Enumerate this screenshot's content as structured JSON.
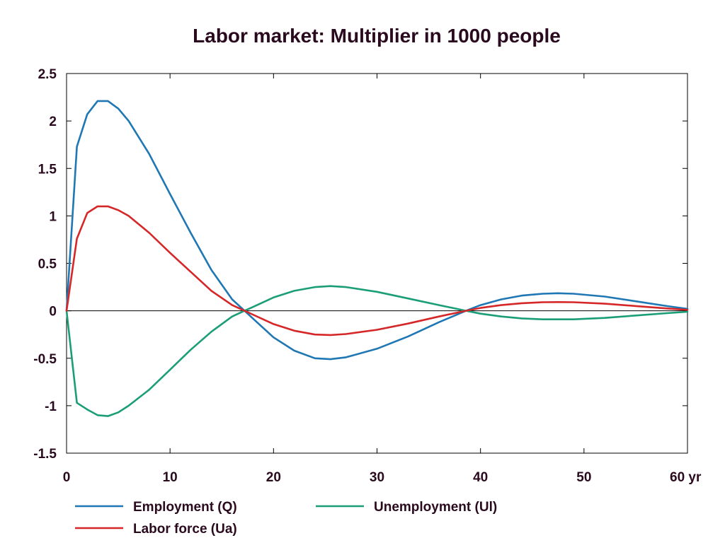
{
  "chart_data": {
    "type": "line",
    "title": "Labor market: Multiplier in 1000 people",
    "xlabel": "",
    "ylabel": "",
    "xlim": [
      0,
      60
    ],
    "ylim": [
      -1.5,
      2.5
    ],
    "x_ticks": [
      0,
      10,
      20,
      30,
      40,
      50,
      60
    ],
    "x_tick_labels": [
      "0",
      "10",
      "20",
      "30",
      "40",
      "50",
      "60 yr"
    ],
    "y_ticks": [
      2.5,
      2,
      1.5,
      1,
      0.5,
      0,
      -0.5,
      -1,
      -1.5
    ],
    "y_tick_labels": [
      "2.5",
      "2",
      "1.5",
      "1",
      "0.5",
      "0",
      "-0.5",
      "-1",
      "-1.5"
    ],
    "grid": false,
    "zero_line": true,
    "legend_position": "bottom",
    "series": [
      {
        "name": "Employment (Q)",
        "color": "#1f77b4",
        "x": [
          0,
          1,
          2,
          3,
          4,
          5,
          6,
          8,
          10,
          12,
          14,
          16,
          17.2,
          18,
          20,
          22,
          24,
          25.5,
          27,
          30,
          33,
          36,
          38.6,
          40,
          42,
          44,
          46,
          47.5,
          49,
          52,
          55,
          58,
          60
        ],
        "y": [
          0,
          1.73,
          2.07,
          2.21,
          2.21,
          2.13,
          2.0,
          1.65,
          1.23,
          0.82,
          0.43,
          0.12,
          0,
          -0.08,
          -0.28,
          -0.42,
          -0.5,
          -0.51,
          -0.49,
          -0.4,
          -0.27,
          -0.12,
          0,
          0.06,
          0.12,
          0.16,
          0.18,
          0.185,
          0.18,
          0.15,
          0.1,
          0.05,
          0.02
        ]
      },
      {
        "name": "Unemployment (Ul)",
        "color": "#1b9e77",
        "x": [
          0,
          1,
          2,
          3,
          4,
          5,
          6,
          8,
          10,
          12,
          14,
          16,
          17.2,
          18,
          20,
          22,
          24,
          25.5,
          27,
          30,
          33,
          36,
          38.6,
          40,
          42,
          44,
          46,
          47.5,
          49,
          52,
          55,
          58,
          60
        ],
        "y": [
          0,
          -0.97,
          -1.04,
          -1.1,
          -1.11,
          -1.07,
          -1.0,
          -0.83,
          -0.62,
          -0.41,
          -0.22,
          -0.06,
          0,
          0.04,
          0.14,
          0.21,
          0.25,
          0.26,
          0.25,
          0.2,
          0.13,
          0.06,
          0,
          -0.03,
          -0.06,
          -0.08,
          -0.09,
          -0.09,
          -0.09,
          -0.075,
          -0.05,
          -0.025,
          -0.01
        ]
      },
      {
        "name": "Labor force (Ua)",
        "color": "#d62728",
        "x": [
          0,
          1,
          2,
          3,
          4,
          5,
          6,
          8,
          10,
          12,
          14,
          16,
          17.2,
          18,
          20,
          22,
          24,
          25.5,
          27,
          30,
          33,
          36,
          38.6,
          40,
          42,
          44,
          46,
          47.5,
          49,
          52,
          55,
          58,
          60
        ],
        "y": [
          0,
          0.76,
          1.03,
          1.1,
          1.1,
          1.06,
          1.0,
          0.82,
          0.61,
          0.41,
          0.21,
          0.06,
          0,
          -0.04,
          -0.14,
          -0.21,
          -0.25,
          -0.255,
          -0.245,
          -0.2,
          -0.135,
          -0.06,
          0,
          0.03,
          0.06,
          0.08,
          0.09,
          0.092,
          0.09,
          0.075,
          0.05,
          0.025,
          0.01
        ]
      }
    ]
  }
}
